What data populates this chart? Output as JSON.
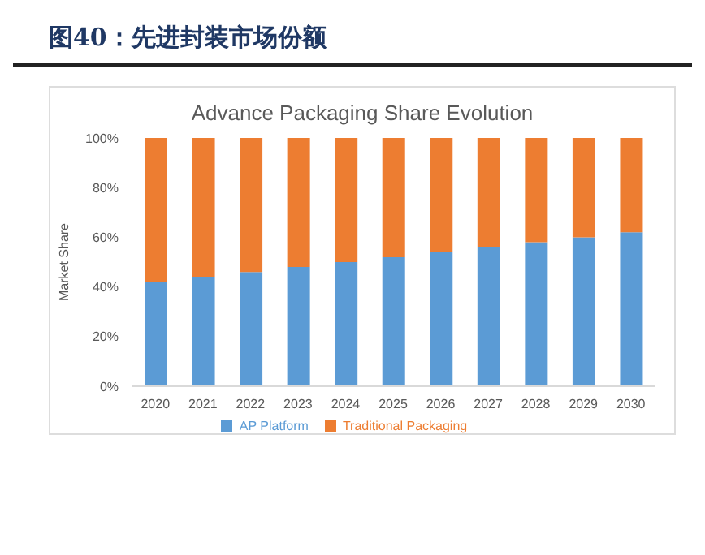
{
  "chart_data": {
    "type": "bar",
    "title": "图40：先进封装市场份额",
    "subtitle": "Advance Packaging Share Evolution",
    "ylabel": "Market Share",
    "categories": [
      "2020",
      "2021",
      "2022",
      "2023",
      "2024",
      "2025",
      "2026",
      "2027",
      "2028",
      "2029",
      "2030"
    ],
    "series": [
      {
        "name": "AP Platform",
        "color": "#5b9bd5",
        "values": [
          42,
          44,
          46,
          48,
          50,
          52,
          54,
          56,
          58,
          60,
          62
        ]
      },
      {
        "name": "Traditional Packaging",
        "color": "#ed7d31",
        "values": [
          58,
          56,
          54,
          52,
          50,
          48,
          46,
          44,
          42,
          40,
          38
        ]
      }
    ],
    "stacked": true,
    "ylim": [
      0,
      100
    ],
    "yticks": [
      {
        "value": 0,
        "label": "0%"
      },
      {
        "value": 20,
        "label": "20%"
      },
      {
        "value": 40,
        "label": "40%"
      },
      {
        "value": 60,
        "label": "60%"
      },
      {
        "value": 80,
        "label": "80%"
      },
      {
        "value": 100,
        "label": "100%"
      }
    ],
    "grid": false,
    "legend": "bottom"
  }
}
